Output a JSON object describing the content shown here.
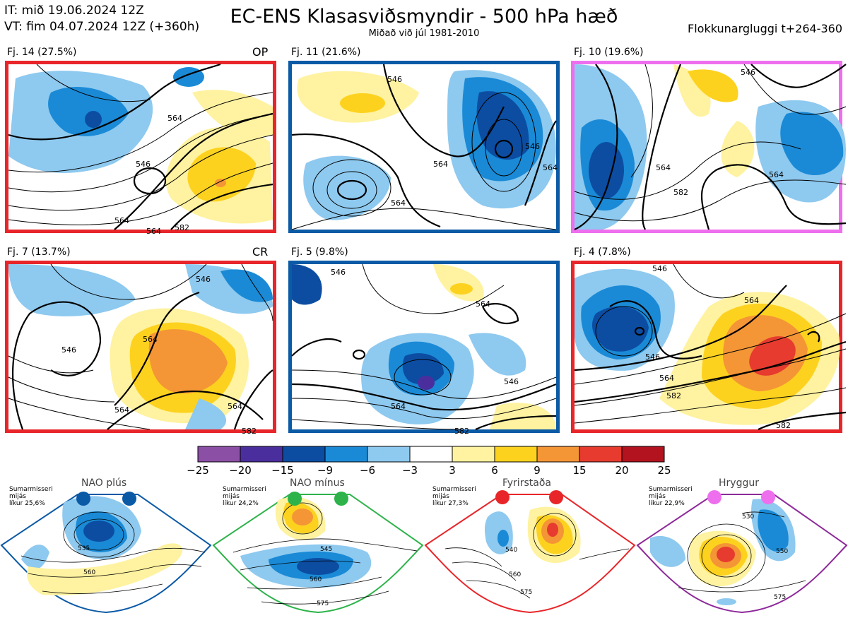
{
  "header": {
    "it_line": "IT: mið 19.06.2024 12Z",
    "vt_line": "VT: fim 04.07.2024 12Z  (+360h)",
    "title": "EC-ENS Klasasviðsmyndir - 500 hPa hæð",
    "subtitle": "Miðað við júl 1981-2010",
    "window": "Flokkunargluggi t+264-360"
  },
  "panels": [
    {
      "label": "Fj. 14 (27.5%)",
      "tag": "OP",
      "frame_color": "#e8262a",
      "contours": [
        "546",
        "564",
        "564",
        "564",
        "582"
      ]
    },
    {
      "label": "Fj. 11 (21.6%)",
      "tag": "",
      "frame_color": "#0b5aa6",
      "contours": [
        "546",
        "564",
        "546",
        "564",
        "564"
      ]
    },
    {
      "label": "Fj. 10 (19.6%)",
      "tag": "",
      "frame_color": "#ee6fee",
      "contours": [
        "546",
        "564",
        "582",
        "564"
      ]
    },
    {
      "label": "Fj. 7 (13.7%)",
      "tag": "CR",
      "frame_color": "#e8262a",
      "contours": [
        "546",
        "564",
        "546",
        "564",
        "564",
        "582"
      ]
    },
    {
      "label": "Fj. 5 (9.8%)",
      "tag": "",
      "frame_color": "#0b5aa6",
      "contours": [
        "546",
        "564",
        "546",
        "564",
        "582"
      ]
    },
    {
      "label": "Fj. 4 (7.8%)",
      "tag": "",
      "frame_color": "#e8262a",
      "contours": [
        "546",
        "564",
        "546",
        "564",
        "582",
        "582"
      ]
    }
  ],
  "colorbar": {
    "ticks": [
      "−25",
      "−20",
      "−15",
      "−9",
      "−6",
      "−3",
      "3",
      "6",
      "9",
      "15",
      "20",
      "25"
    ],
    "colors": [
      "#8c4fa6",
      "#4b2e9e",
      "#0c4da2",
      "#1a8ad6",
      "#8ec9ef",
      "#ffffff",
      "#fff2a0",
      "#fdd21f",
      "#f49536",
      "#e63b2e",
      "#b3121f"
    ]
  },
  "regimes": [
    {
      "title": "NAO plús",
      "note": [
        "Sumarmisseri",
        "mijás",
        "líkur 25,6%"
      ],
      "dot_color": "#0b5aa6",
      "frame_color": "#0b5aa6",
      "contours": [
        "535",
        "560"
      ]
    },
    {
      "title": "NAO mínus",
      "note": [
        "Sumarmisseri",
        "mijás",
        "líkur 24,2%"
      ],
      "dot_color": "#2db34a",
      "frame_color": "#2db34a",
      "contours": [
        "545",
        "560",
        "575"
      ]
    },
    {
      "title": "Fyrirstaða",
      "note": [
        "Sumarmisseri",
        "mijás",
        "líkur 27,3%"
      ],
      "dot_color": "#e8262a",
      "frame_color": "#e8262a",
      "contours": [
        "540",
        "560",
        "575"
      ]
    },
    {
      "title": "Hryggur",
      "note": [
        "Sumarmisseri",
        "mijás",
        "líkur 22,9%"
      ],
      "dot_color": "#ee6fee",
      "frame_color": "#8e2a9a",
      "contours": [
        "530",
        "550",
        "575"
      ]
    }
  ]
}
